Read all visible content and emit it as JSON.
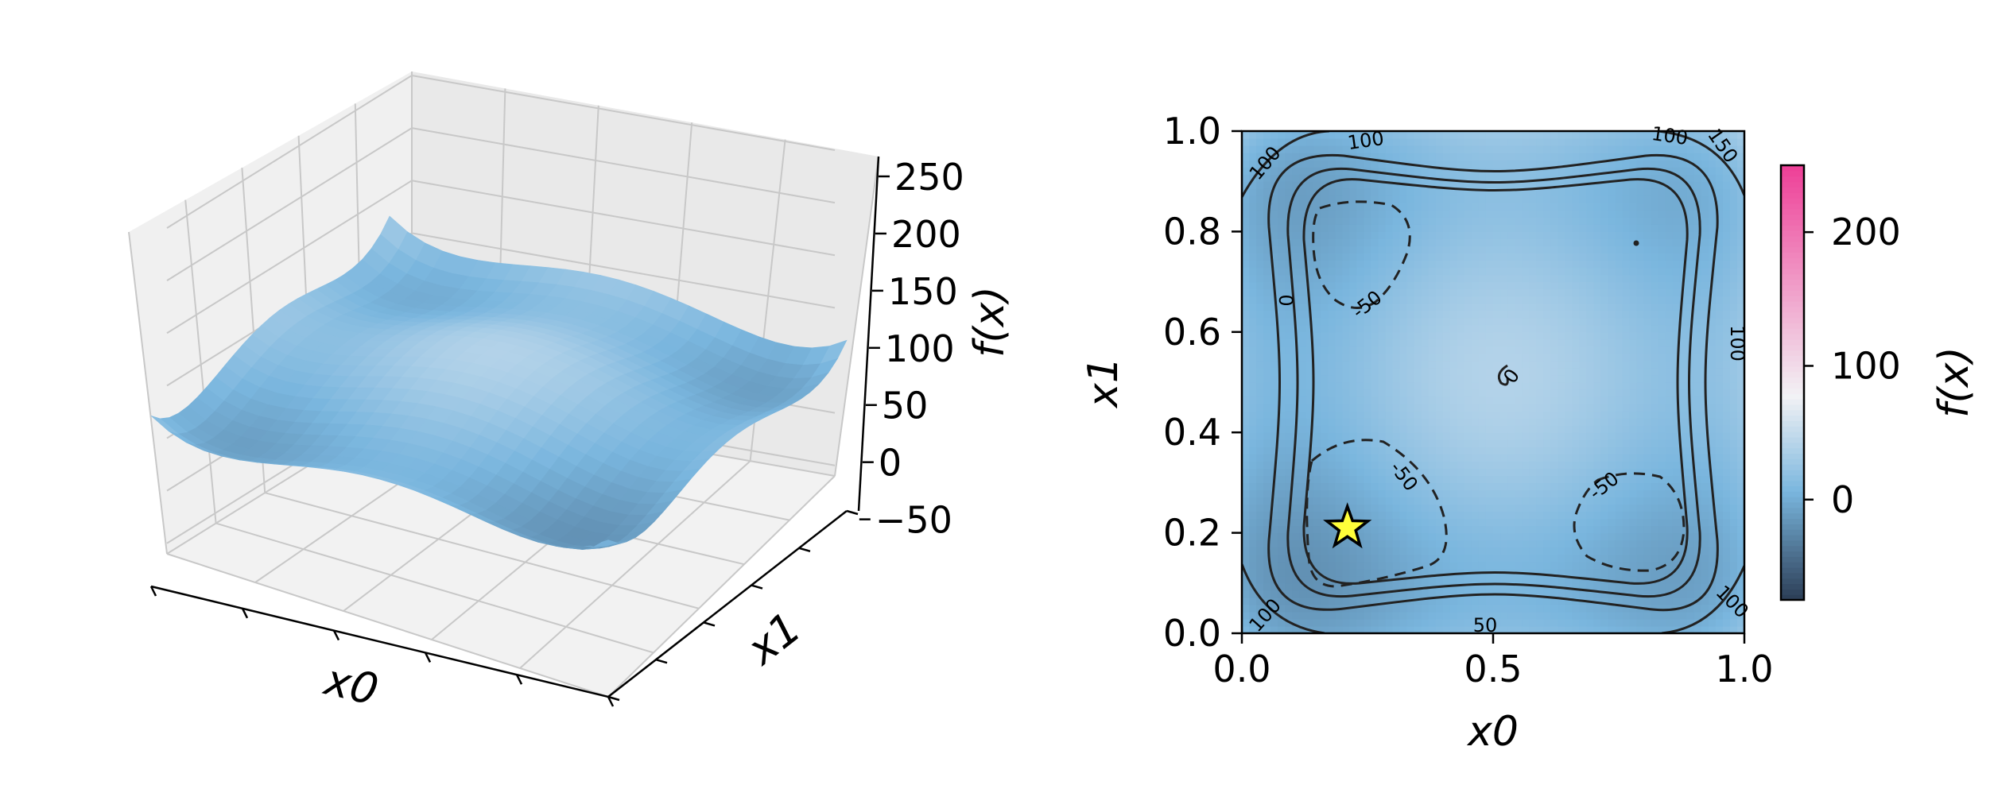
{
  "colors": {
    "low": "#2b3d55",
    "mid_low": "#7ab6de",
    "mid": "#f2f2f5",
    "high": "#ee3f97",
    "contour_line": "#222222",
    "optimum_star": "#ffff3a"
  },
  "chart_data": [
    {
      "type": "surface",
      "title": "",
      "xlabel": "x0",
      "ylabel": "x1",
      "zlabel": "f(x)",
      "xlim": [
        0,
        1
      ],
      "ylim": [
        0,
        1
      ],
      "zlim": [
        -60,
        250
      ],
      "z_ticks": [
        -50,
        0,
        50,
        100,
        150,
        200,
        250
      ],
      "z_tick_labels": [
        "−50",
        "0",
        "50",
        "100",
        "150",
        "200",
        "250"
      ],
      "grid": true,
      "function": "two-dimensional function with four minima near (0.21, 0.21), (0.21, 0.79), (0.79, 0.21), (0.79, 0.79) and peaks of about 250 at the corners",
      "minima": [
        {
          "x0": 0.21,
          "x1": 0.21,
          "f": -75
        },
        {
          "x0": 0.21,
          "x1": 0.79,
          "f": -68
        },
        {
          "x0": 0.79,
          "x1": 0.21,
          "f": -68
        },
        {
          "x0": 0.79,
          "x1": 0.79,
          "f": -62
        }
      ],
      "corner_max": 250
    },
    {
      "type": "heatmap",
      "title": "",
      "xlabel": "x0",
      "ylabel": "x1",
      "xlim": [
        0,
        1
      ],
      "ylim": [
        0,
        1
      ],
      "x_ticks": [
        "0.0",
        "0.5",
        "1.0"
      ],
      "y_ticks": [
        "0.0",
        "0.2",
        "0.4",
        "0.6",
        "0.8",
        "1.0"
      ],
      "contour_levels": [
        -50,
        0,
        50,
        100,
        150
      ],
      "contour_labels": [
        "100",
        "100",
        "100",
        "150",
        "100",
        "0",
        "-50",
        "0",
        "-50",
        "-50",
        "100",
        "50",
        "100"
      ],
      "optimum": {
        "x0": 0.21,
        "x1": 0.21,
        "marker": "star"
      },
      "colorbar": {
        "label": "f(x)",
        "range": [
          -75,
          250
        ],
        "ticks": [
          0,
          100,
          200
        ],
        "tick_labels": [
          "0",
          "100",
          "200"
        ]
      }
    }
  ]
}
